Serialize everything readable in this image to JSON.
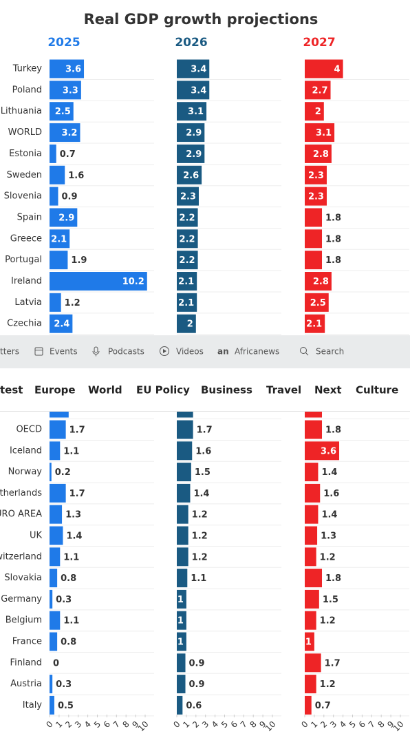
{
  "chart_data": {
    "type": "bar",
    "title": "Real GDP growth projections",
    "categories": [
      "Turkey",
      "Poland",
      "Lithuania",
      "WORLD",
      "Estonia",
      "Sweden",
      "Slovenia",
      "Spain",
      "Greece",
      "Portugal",
      "Ireland",
      "Latvia",
      "Czechia",
      null,
      "OECD",
      "Iceland",
      "Norway",
      "therlands",
      "URO AREA",
      "UK",
      "witzerland",
      "Slovakia",
      "Germany",
      "Belgium",
      "France",
      "Finland",
      "Austria",
      "Italy"
    ],
    "series": [
      {
        "name": "2025",
        "color": "#1f7ae8",
        "values": [
          3.6,
          3.3,
          2.5,
          3.2,
          0.7,
          1.6,
          0.9,
          2.9,
          2.1,
          1.9,
          10.2,
          1.2,
          2.4,
          2.0,
          1.7,
          1.1,
          0.2,
          1.7,
          1.3,
          1.4,
          1.1,
          0.8,
          0.3,
          1.1,
          0.8,
          0,
          0.3,
          0.5
        ]
      },
      {
        "name": "2026",
        "color": "#1a5a82",
        "values": [
          3.4,
          3.4,
          3.1,
          2.9,
          2.9,
          2.6,
          2.3,
          2.2,
          2.2,
          2.2,
          2.1,
          2.1,
          2,
          1.7,
          1.7,
          1.6,
          1.5,
          1.4,
          1.2,
          1.2,
          1.2,
          1.1,
          1,
          1,
          1,
          0.9,
          0.9,
          0.6
        ]
      },
      {
        "name": "2027",
        "color": "#ee2426",
        "values": [
          4,
          2.7,
          2,
          3.1,
          2.8,
          2.3,
          2.3,
          1.8,
          1.8,
          1.8,
          2.8,
          2.5,
          2.1,
          1.8,
          1.8,
          3.6,
          1.4,
          1.6,
          1.4,
          1.3,
          1.2,
          1.8,
          1.5,
          1.2,
          1,
          1.7,
          1.2,
          0.7
        ]
      }
    ],
    "xlim": [
      0,
      10
    ],
    "xticks": [
      0,
      1,
      2,
      3,
      4,
      5,
      6,
      7,
      8,
      9,
      10
    ]
  },
  "nav": {
    "items": [
      "tters",
      "Events",
      "Podcasts",
      "Videos",
      "Africanews",
      "Search"
    ]
  },
  "menu": {
    "items": [
      "test",
      "Europe",
      "World",
      "EU Policy",
      "Business",
      "Travel",
      "Next",
      "Culture"
    ]
  }
}
